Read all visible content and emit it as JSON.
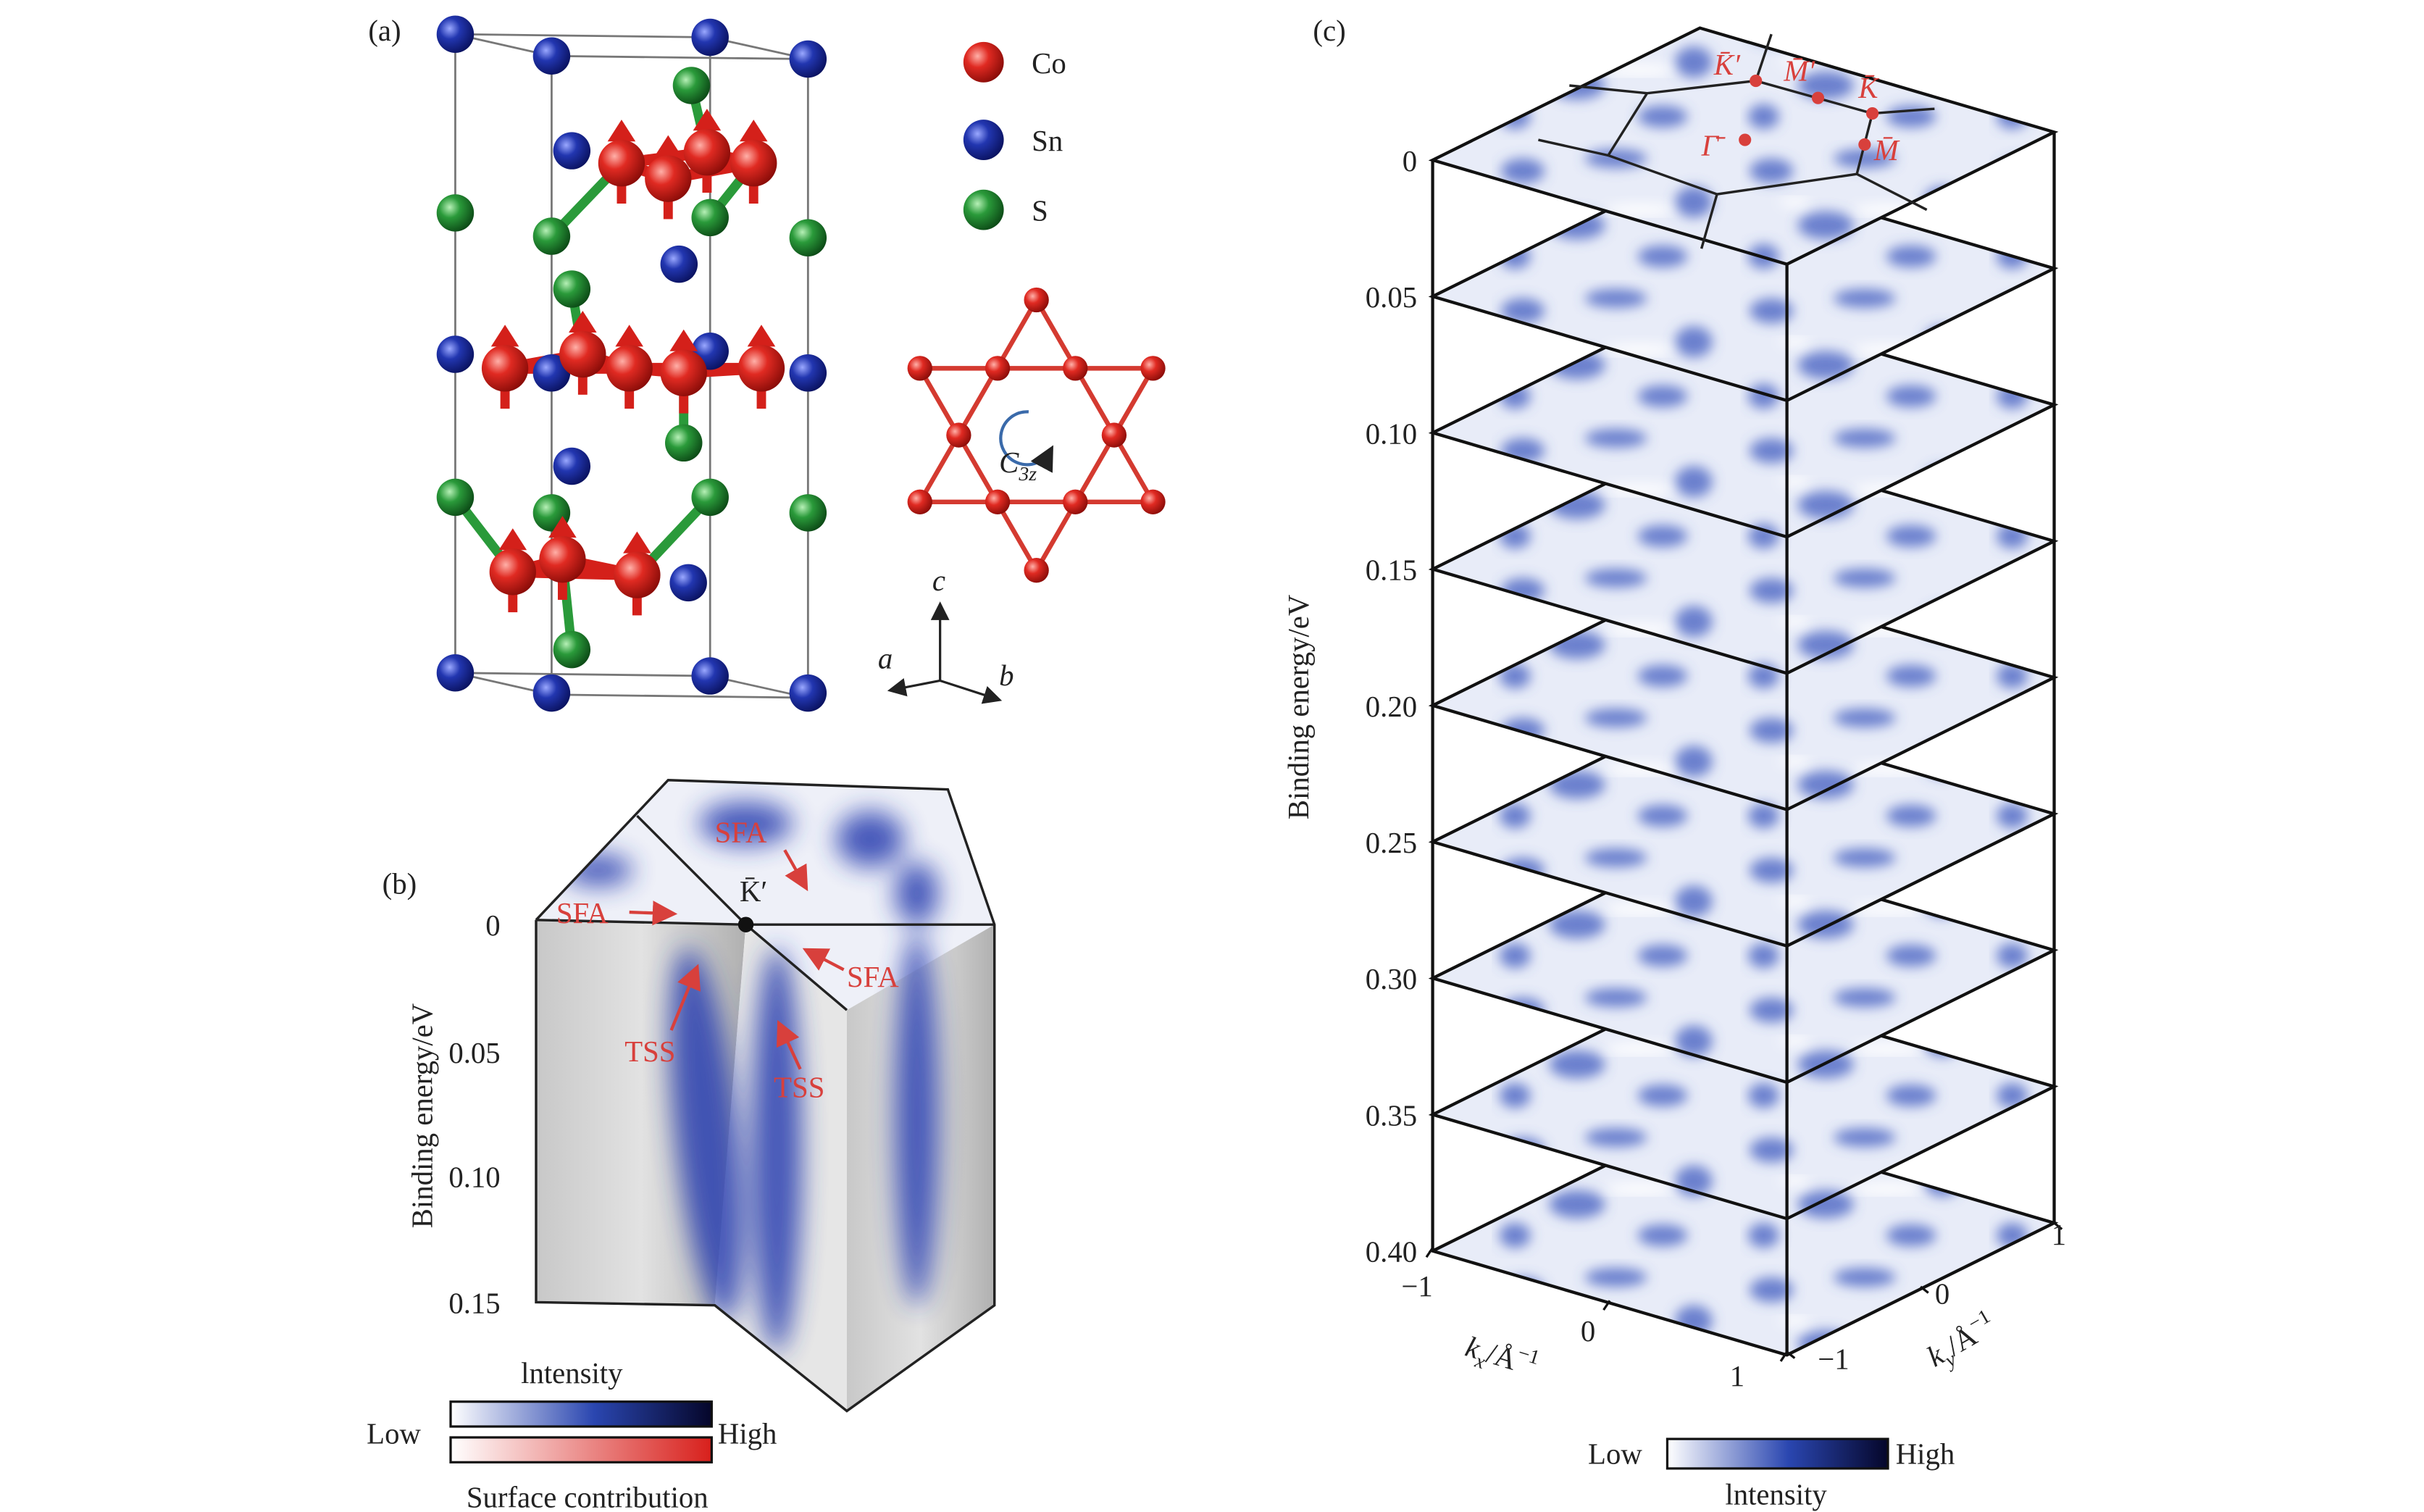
{
  "panel_a": {
    "label": "(a)",
    "legend": [
      "Co",
      "Sn",
      "S"
    ],
    "rotation": {
      "symbol": "C",
      "subscript": "3z"
    },
    "axes": {
      "c": "c",
      "a": "a",
      "b": "b"
    }
  },
  "panel_b": {
    "label": "(b)",
    "y_axis_label": "Binding energy/eV",
    "yticks": [
      "0",
      "0.05",
      "0.10",
      "0.15"
    ],
    "point_label": "K̄′",
    "annotations": {
      "sfa": [
        "SFA",
        "SFA",
        "SFA"
      ],
      "tss": [
        "TSS",
        "TSS"
      ]
    },
    "colorbar": {
      "title": "lntensity",
      "low": "Low",
      "high": "High",
      "surface_title": "Surface contribution"
    }
  },
  "panel_c": {
    "label": "(c)",
    "y_axis_label": "Binding energy/eV",
    "energy_ticks": [
      "0",
      "0.05",
      "0.10",
      "0.15",
      "0.20",
      "0.25",
      "0.30",
      "0.35",
      "0.40"
    ],
    "kx_label": {
      "symbol": "k",
      "subscript": "x",
      "unit": "/Å",
      "exponent": "−1"
    },
    "ky_label": {
      "symbol": "k",
      "subscript": "y",
      "unit": "/Å",
      "exponent": "−1"
    },
    "kx_ticks": [
      "−1",
      "0",
      "1"
    ],
    "ky_ticks": [
      "−1",
      "0",
      "1"
    ],
    "bz_labels": [
      "K̄′",
      "M̄′",
      "K̄",
      "M̄",
      "Γ̄"
    ],
    "colorbar": {
      "low": "Low",
      "high": "High",
      "title": "lntensity"
    }
  }
}
